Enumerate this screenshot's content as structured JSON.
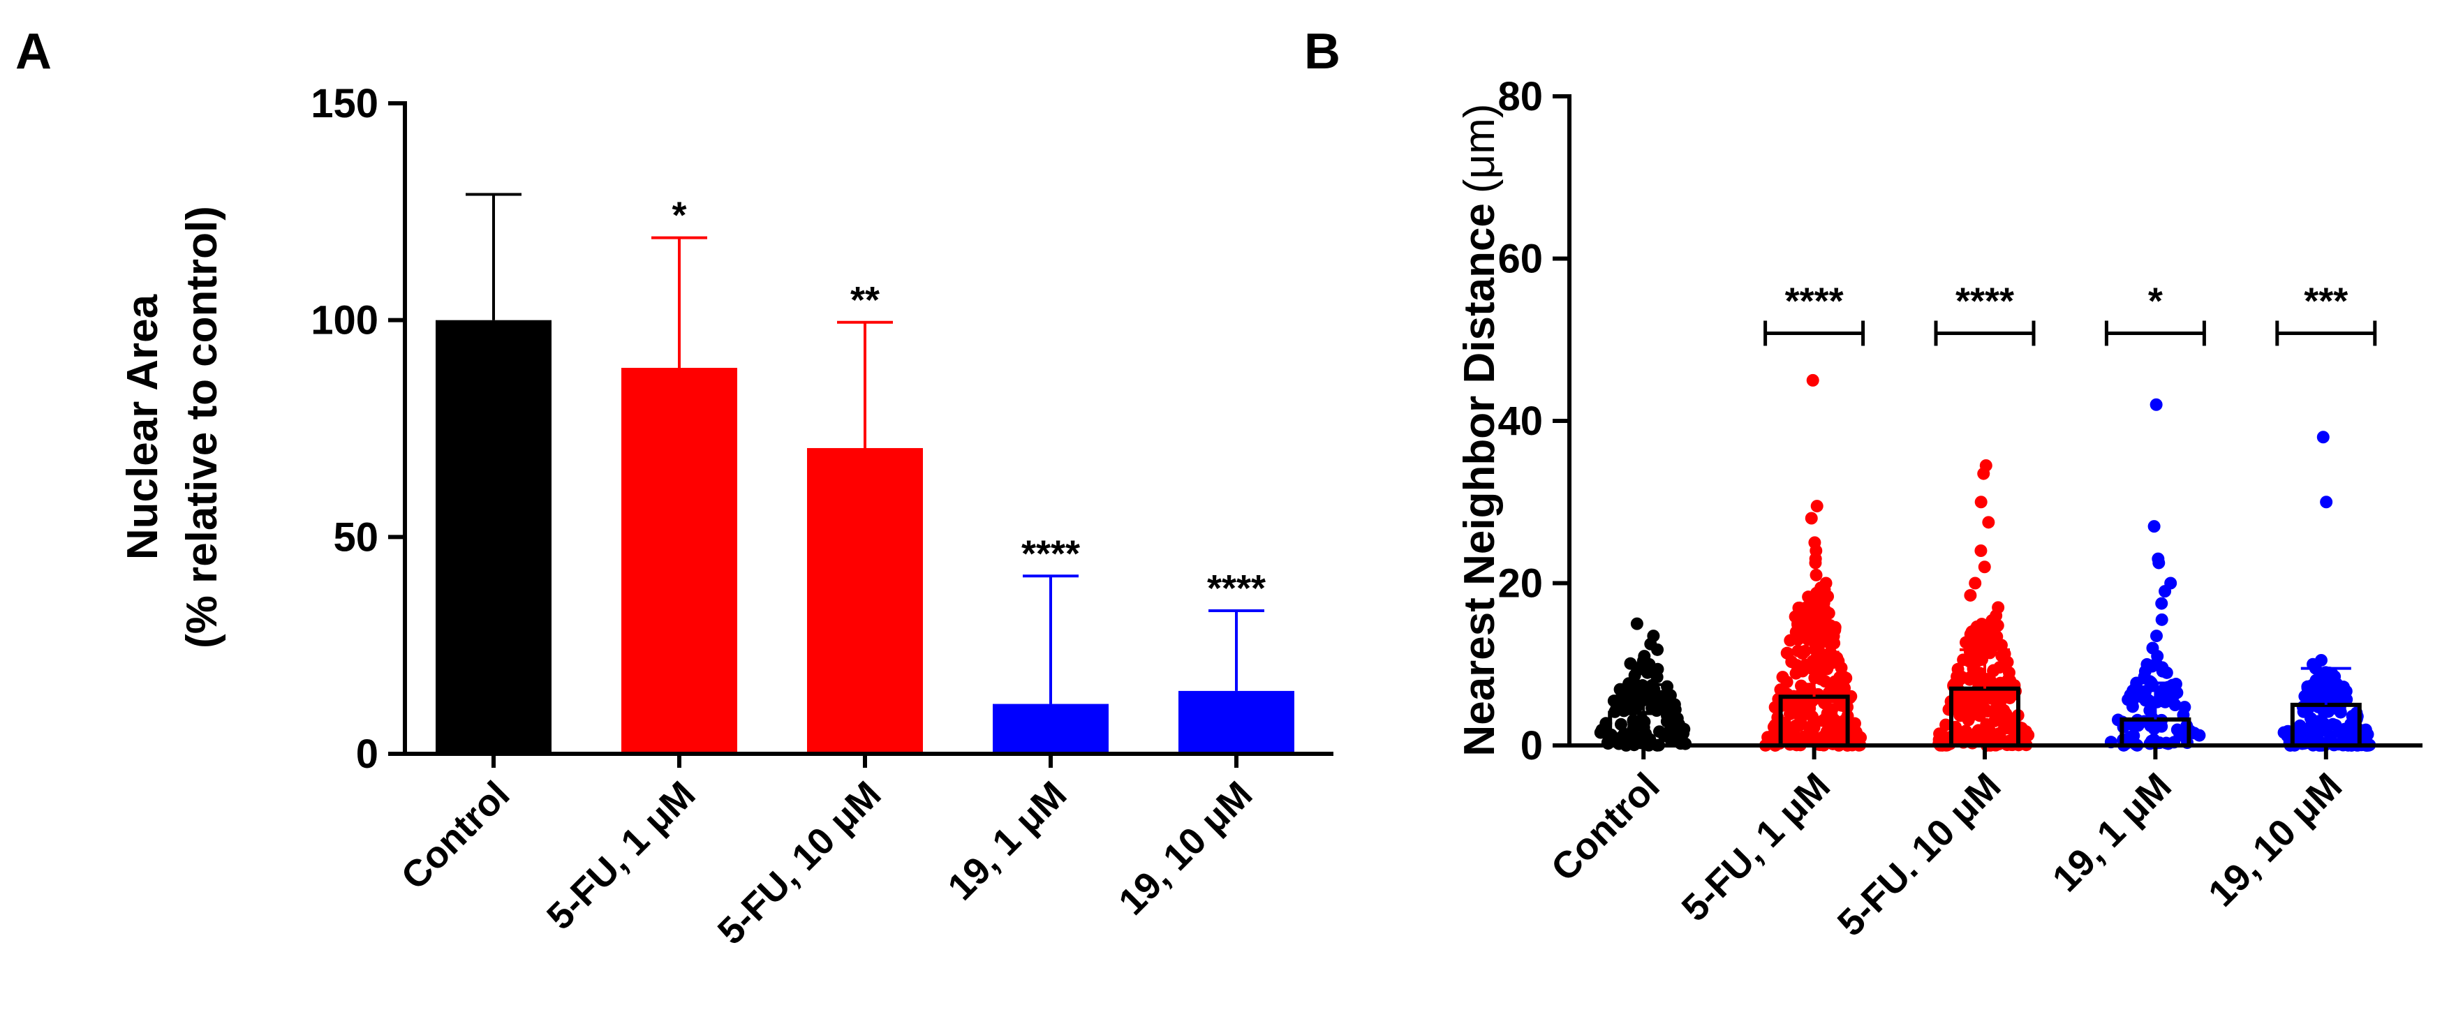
{
  "colors": {
    "control": "#000000",
    "fu": "#ff0000",
    "c19": "#0000ff",
    "axis": "#000000"
  },
  "chart_data": [
    {
      "panel": "A",
      "type": "bar",
      "ylabel_line1": "Nuclear Area",
      "ylabel_line2": "(% relative to control)",
      "ylim": [
        0,
        150
      ],
      "yticks": [
        0,
        50,
        100,
        150
      ],
      "categories": [
        "Control",
        "5-FU, 1 μM",
        "5-FU, 10 μM",
        "19, 1 μM",
        "19, 10 μM"
      ],
      "values": [
        100,
        89,
        70.5,
        11.5,
        14.5
      ],
      "error_upper": [
        29,
        30,
        29,
        29.5,
        18.5
      ],
      "bar_colors": [
        "control",
        "fu",
        "fu",
        "c19",
        "c19"
      ],
      "significance": [
        "",
        "*",
        "**",
        "****",
        "****"
      ],
      "grid": false,
      "legend": "none"
    },
    {
      "panel": "B",
      "type": "scatter",
      "ylabel_main": "Nearest Neighbor Distance",
      "ylabel_unit": "(μm)",
      "ylim": [
        0,
        80
      ],
      "yticks": [
        0,
        20,
        40,
        60,
        80
      ],
      "categories": [
        "Control",
        "5-FU, 1 μM",
        "5-FU. 10 μM",
        "19, 1 μM",
        "19, 10 μM"
      ],
      "means": [
        4,
        6,
        7,
        3.2,
        5
      ],
      "error_upper": [
        3.5,
        5.5,
        4.8,
        4.5,
        4.5
      ],
      "group_colors": [
        "control",
        "fu",
        "fu",
        "c19",
        "c19"
      ],
      "significance": [
        "",
        "****",
        "****",
        "*",
        "***"
      ],
      "outliers": [
        [
          15,
          13.5,
          12.5,
          11.8,
          11
        ],
        [
          45,
          29.5,
          28,
          25,
          24,
          23,
          22.5,
          21,
          20
        ],
        [
          34.5,
          33.5,
          30,
          27.5,
          24,
          22,
          20,
          18.5,
          17,
          16
        ],
        [
          42,
          27,
          23,
          22.5,
          20,
          19,
          17.5,
          15.5,
          13.5,
          12,
          11
        ],
        [
          38,
          30,
          10.5,
          10,
          9.5,
          9
        ]
      ],
      "point_ranges": [
        [
          0,
          10.5
        ],
        [
          0,
          19.5
        ],
        [
          0,
          15.5
        ],
        [
          0,
          10
        ],
        [
          0,
          9
        ]
      ],
      "points_per_group": [
        120,
        260,
        240,
        90,
        150
      ],
      "grid": false,
      "legend": "none"
    }
  ]
}
